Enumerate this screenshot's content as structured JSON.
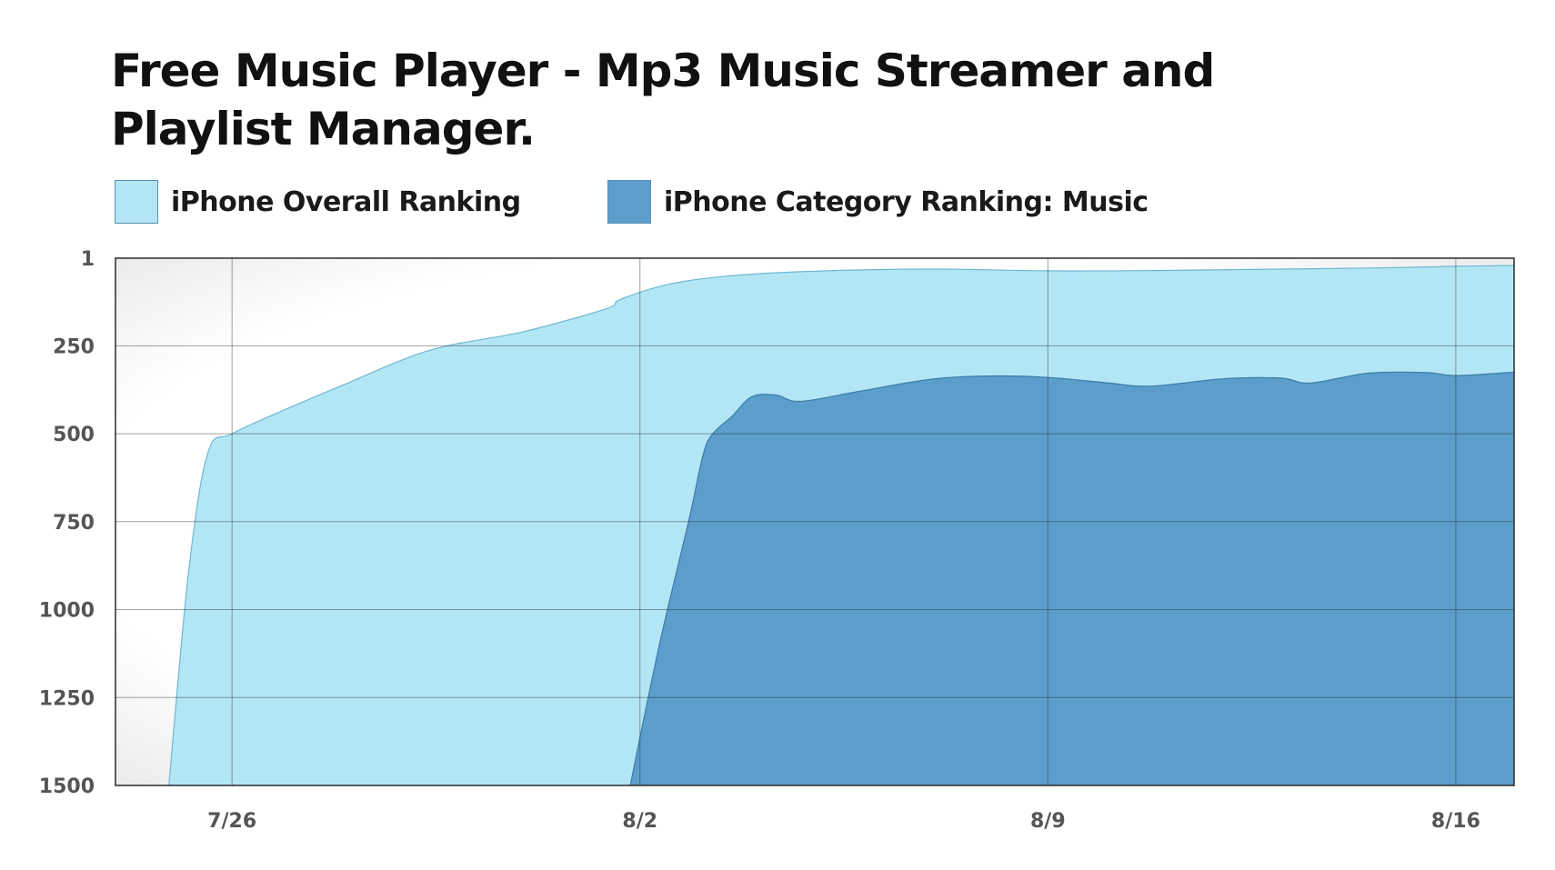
{
  "chart_data": {
    "type": "area",
    "title": "Free Music Player - Mp3 Music Streamer and Playlist Manager.",
    "xlabel": "",
    "ylabel": "",
    "x_type": "date",
    "x_range": [
      "2017-07-24",
      "2017-08-17"
    ],
    "x_ticks": [
      {
        "date": "2017-07-26",
        "label": "7/26"
      },
      {
        "date": "2017-08-02",
        "label": "8/2"
      },
      {
        "date": "2017-08-09",
        "label": "8/9"
      },
      {
        "date": "2017-08-16",
        "label": "8/16"
      }
    ],
    "y_range": [
      1,
      1500
    ],
    "y_inverted": true,
    "y_ticks": [
      1,
      250,
      500,
      750,
      1000,
      1250,
      1500
    ],
    "grid": true,
    "legend_position": "top-left",
    "series": [
      {
        "name": "iPhone Overall Ranking",
        "color": "#b3e6f5",
        "points": [
          [
            "2017-07-24 22:00",
            1500
          ],
          [
            "2017-07-25 06:00",
            900
          ],
          [
            "2017-07-25 14:00",
            555
          ],
          [
            "2017-07-26 00:00",
            500
          ],
          [
            "2017-07-27 00:00",
            425
          ],
          [
            "2017-07-28 00:00",
            355
          ],
          [
            "2017-07-29 00:00",
            285
          ],
          [
            "2017-07-29 18:00",
            248
          ],
          [
            "2017-07-31 00:00",
            210
          ],
          [
            "2017-08-01 10:00",
            145
          ],
          [
            "2017-08-01 16:00",
            118
          ],
          [
            "2017-08-02 12:00",
            75
          ],
          [
            "2017-08-03 12:00",
            52
          ],
          [
            "2017-08-05 00:00",
            38
          ],
          [
            "2017-08-07 00:00",
            32
          ],
          [
            "2017-08-09 00:00",
            37
          ],
          [
            "2017-08-11 00:00",
            36
          ],
          [
            "2017-08-13 00:00",
            32
          ],
          [
            "2017-08-15 00:00",
            28
          ],
          [
            "2017-08-16 00:00",
            24
          ],
          [
            "2017-08-17 00:00",
            22
          ]
        ]
      },
      {
        "name": "iPhone Category Ranking: Music",
        "color": "#5b9ecc",
        "points": [
          [
            "2017-08-01 20:00",
            1500
          ],
          [
            "2017-08-02 08:00",
            1100
          ],
          [
            "2017-08-02 20:00",
            750
          ],
          [
            "2017-08-03 02:00",
            560
          ],
          [
            "2017-08-03 06:00",
            500
          ],
          [
            "2017-08-03 14:00",
            450
          ],
          [
            "2017-08-03 22:00",
            395
          ],
          [
            "2017-08-04 08:00",
            390
          ],
          [
            "2017-08-04 18:00",
            408
          ],
          [
            "2017-08-05 18:00",
            380
          ],
          [
            "2017-08-07 00:00",
            345
          ],
          [
            "2017-08-08 00:00",
            336
          ],
          [
            "2017-08-09 00:00",
            340
          ],
          [
            "2017-08-10 00:00",
            355
          ],
          [
            "2017-08-10 18:00",
            365
          ],
          [
            "2017-08-12 00:00",
            344
          ],
          [
            "2017-08-13 00:00",
            342
          ],
          [
            "2017-08-13 12:00",
            356
          ],
          [
            "2017-08-14 12:00",
            328
          ],
          [
            "2017-08-15 12:00",
            326
          ],
          [
            "2017-08-16 00:00",
            335
          ],
          [
            "2017-08-17 00:00",
            325
          ]
        ]
      }
    ]
  }
}
